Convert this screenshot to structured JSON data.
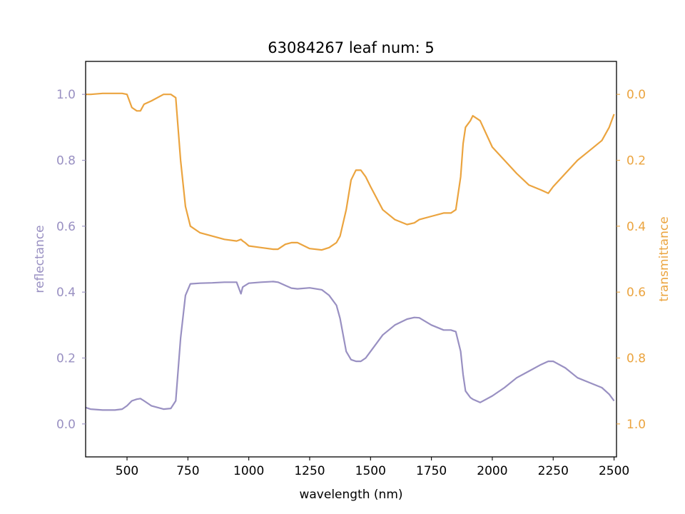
{
  "chart_data": {
    "type": "line",
    "title": "63084267 leaf num: 5",
    "xlabel": "wavelength (nm)",
    "xlim": [
      330,
      2510
    ],
    "xticks": [
      500,
      750,
      1000,
      1250,
      1500,
      1750,
      2000,
      2250,
      2500
    ],
    "grid": false,
    "left_axis": {
      "label": "reflectance",
      "color": "#9990c2",
      "ylim": [
        -0.1,
        1.1
      ],
      "ticks": [
        "0.0",
        "0.2",
        "0.4",
        "0.6",
        "0.8",
        "1.0"
      ]
    },
    "right_axis": {
      "label": "transmittance",
      "color": "#eba43f",
      "ylim": [
        1.1,
        -0.1
      ],
      "inverted": true,
      "ticks": [
        "0.0",
        "0.2",
        "0.4",
        "0.6",
        "0.8",
        "1.0"
      ]
    },
    "series": [
      {
        "axis": "left",
        "color": "#9990c2",
        "x": [
          330,
          350,
          400,
          450,
          480,
          500,
          520,
          540,
          555,
          570,
          600,
          650,
          680,
          700,
          720,
          740,
          760,
          800,
          850,
          900,
          950,
          968,
          975,
          985,
          1000,
          1050,
          1100,
          1120,
          1150,
          1175,
          1200,
          1250,
          1300,
          1330,
          1360,
          1375,
          1400,
          1420,
          1440,
          1460,
          1480,
          1500,
          1550,
          1600,
          1650,
          1680,
          1700,
          1750,
          1800,
          1830,
          1850,
          1870,
          1880,
          1890,
          1900,
          1910,
          1920,
          1950,
          2000,
          2050,
          2100,
          2150,
          2200,
          2230,
          2250,
          2300,
          2350,
          2400,
          2450,
          2480,
          2500
        ],
        "y": [
          0.05,
          0.045,
          0.042,
          0.042,
          0.045,
          0.055,
          0.07,
          0.075,
          0.077,
          0.07,
          0.055,
          0.045,
          0.047,
          0.07,
          0.26,
          0.39,
          0.425,
          0.427,
          0.428,
          0.43,
          0.43,
          0.395,
          0.415,
          0.42,
          0.427,
          0.43,
          0.432,
          0.43,
          0.42,
          0.412,
          0.41,
          0.413,
          0.407,
          0.39,
          0.36,
          0.32,
          0.22,
          0.195,
          0.19,
          0.19,
          0.2,
          0.22,
          0.27,
          0.3,
          0.318,
          0.323,
          0.322,
          0.3,
          0.285,
          0.285,
          0.28,
          0.22,
          0.15,
          0.1,
          0.09,
          0.08,
          0.075,
          0.065,
          0.085,
          0.11,
          0.14,
          0.16,
          0.18,
          0.19,
          0.19,
          0.17,
          0.14,
          0.125,
          0.11,
          0.09,
          0.07
        ]
      },
      {
        "axis": "right",
        "color": "#eba43f",
        "x": [
          330,
          350,
          400,
          450,
          480,
          500,
          520,
          540,
          555,
          570,
          600,
          650,
          680,
          700,
          720,
          740,
          760,
          800,
          850,
          900,
          950,
          968,
          975,
          985,
          1000,
          1050,
          1100,
          1120,
          1150,
          1175,
          1200,
          1250,
          1300,
          1330,
          1360,
          1375,
          1400,
          1420,
          1440,
          1460,
          1480,
          1500,
          1550,
          1600,
          1650,
          1680,
          1700,
          1750,
          1800,
          1830,
          1850,
          1870,
          1880,
          1890,
          1900,
          1910,
          1920,
          1950,
          2000,
          2050,
          2100,
          2150,
          2200,
          2230,
          2250,
          2300,
          2350,
          2400,
          2450,
          2480,
          2500
        ],
        "y": [
          0.0,
          0.0,
          -0.003,
          -0.003,
          -0.003,
          0.0,
          0.04,
          0.05,
          0.05,
          0.03,
          0.02,
          0.0,
          0.0,
          0.01,
          0.2,
          0.34,
          0.4,
          0.42,
          0.43,
          0.44,
          0.445,
          0.44,
          0.445,
          0.45,
          0.46,
          0.465,
          0.47,
          0.47,
          0.455,
          0.45,
          0.45,
          0.468,
          0.472,
          0.465,
          0.45,
          0.43,
          0.35,
          0.26,
          0.23,
          0.23,
          0.25,
          0.28,
          0.35,
          0.38,
          0.395,
          0.39,
          0.38,
          0.37,
          0.36,
          0.36,
          0.35,
          0.25,
          0.15,
          0.1,
          0.09,
          0.08,
          0.065,
          0.08,
          0.16,
          0.2,
          0.24,
          0.275,
          0.29,
          0.3,
          0.28,
          0.24,
          0.2,
          0.17,
          0.14,
          0.1,
          0.06
        ]
      }
    ]
  }
}
